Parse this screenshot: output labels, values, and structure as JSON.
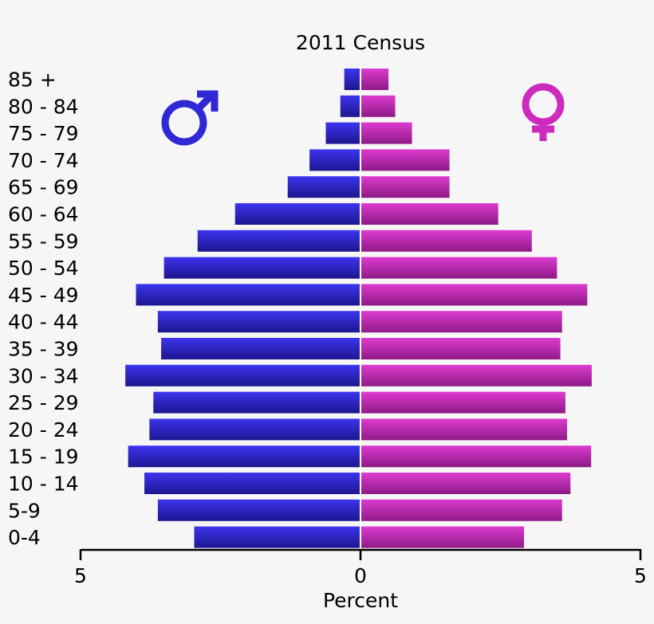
{
  "chart_data": {
    "type": "bar",
    "orientation": "horizontal",
    "layout": "population-pyramid",
    "title": "2011 Census",
    "xlabel": "Percent",
    "ylabel": "",
    "xlim": [
      -5,
      5
    ],
    "x_ticks": [
      {
        "value": -5,
        "label": "5"
      },
      {
        "value": 0,
        "label": "0"
      },
      {
        "value": 5,
        "label": "5"
      }
    ],
    "grid": false,
    "categories": [
      "85 +",
      "80 - 84",
      "75 - 79",
      "70 - 74",
      "65 - 69",
      "60 - 64",
      "55 - 59",
      "50 - 54",
      "45 - 49",
      "40 - 44",
      "35 - 39",
      "30 - 34",
      "25 - 29",
      "20 - 24",
      "15 - 19",
      "10 - 14",
      "5-9",
      "0-4"
    ],
    "series": [
      {
        "symbol": "♂",
        "side": "left",
        "color": "#2b22d0",
        "values": [
          0.29,
          0.36,
          0.62,
          0.91,
          1.3,
          2.24,
          2.91,
          3.51,
          4.01,
          3.62,
          3.56,
          4.2,
          3.7,
          3.77,
          4.15,
          3.86,
          3.62,
          2.97
        ]
      },
      {
        "symbol": "♀",
        "side": "right",
        "color": "#c929b8",
        "values": [
          0.5,
          0.62,
          0.92,
          1.59,
          1.59,
          2.46,
          3.06,
          3.51,
          4.05,
          3.6,
          3.57,
          4.13,
          3.66,
          3.69,
          4.12,
          3.75,
          3.6,
          2.92
        ]
      }
    ]
  }
}
